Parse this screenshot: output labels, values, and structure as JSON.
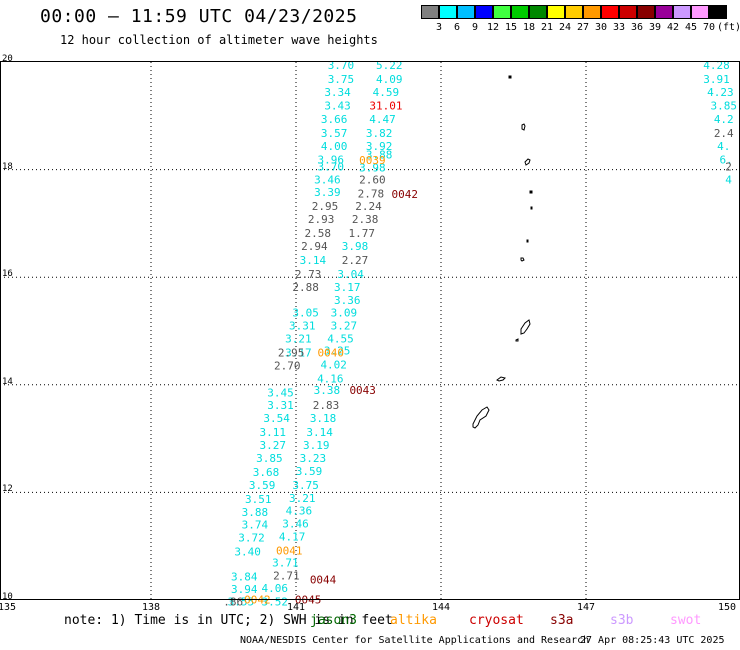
{
  "header": {
    "title": "00:00 – 11:59 UTC 04/23/2025",
    "subtitle": "12 hour collection of altimeter wave heights"
  },
  "legend": {
    "unit": "(ft)",
    "labels": [
      "3",
      "6",
      "9",
      "12",
      "15",
      "18",
      "21",
      "24",
      "27",
      "30",
      "33",
      "36",
      "39",
      "42",
      "45",
      "70"
    ],
    "colors": [
      "#808080",
      "#00ffff",
      "#00bfff",
      "#0000ff",
      "#40ff40",
      "#00cc00",
      "#008800",
      "#ffff00",
      "#ffcc00",
      "#ff9900",
      "#ff0000",
      "#cc0000",
      "#880000",
      "#990099",
      "#cc99ff",
      "#ff99ff",
      "#000000"
    ]
  },
  "axes": {
    "x_ticks": [
      "135",
      "138",
      "141",
      "144",
      "147",
      "150"
    ],
    "y_ticks": [
      "10",
      "12",
      "14",
      "16",
      "18",
      "20"
    ]
  },
  "tracks": [
    {
      "color": "#00dddd",
      "items": [
        {
          "v": "3.70",
          "lon": 141.93,
          "lat": 19.94
        },
        {
          "v": "3.75",
          "lon": 141.93,
          "lat": 19.68
        },
        {
          "v": "3.34",
          "lon": 141.86,
          "lat": 19.44
        },
        {
          "v": "3.43",
          "lon": 141.86,
          "lat": 19.19
        },
        {
          "v": "3.66",
          "lon": 141.79,
          "lat": 18.94
        },
        {
          "v": "3.57",
          "lon": 141.79,
          "lat": 18.68
        },
        {
          "v": "4.00",
          "lon": 141.79,
          "lat": 18.44
        },
        {
          "v": "3.96",
          "lon": 141.72,
          "lat": 18.19
        },
        {
          "v": "3.70",
          "lon": 141.72,
          "lat": 18.06
        },
        {
          "v": "3.46",
          "lon": 141.65,
          "lat": 17.82
        },
        {
          "v": "3.39",
          "lon": 141.65,
          "lat": 17.58
        },
        {
          "v": "3.14",
          "lon": 141.35,
          "lat": 16.32
        },
        {
          "v": "3.05",
          "lon": 141.2,
          "lat": 15.34
        },
        {
          "v": "3.31",
          "lon": 141.13,
          "lat": 15.1
        },
        {
          "v": "3.21",
          "lon": 141.05,
          "lat": 14.86
        },
        {
          "v": "3.17",
          "lon": 141.05,
          "lat": 14.6
        },
        {
          "v": "3.45",
          "lon": 140.68,
          "lat": 13.86
        },
        {
          "v": "3.31",
          "lon": 140.68,
          "lat": 13.62
        },
        {
          "v": "3.54",
          "lon": 140.6,
          "lat": 13.38
        },
        {
          "v": "3.11",
          "lon": 140.52,
          "lat": 13.12
        },
        {
          "v": "3.27",
          "lon": 140.52,
          "lat": 12.88
        },
        {
          "v": "3.85",
          "lon": 140.45,
          "lat": 12.64
        },
        {
          "v": "3.68",
          "lon": 140.38,
          "lat": 12.38
        },
        {
          "v": "3.59",
          "lon": 140.3,
          "lat": 12.14
        },
        {
          "v": "3.51",
          "lon": 140.22,
          "lat": 11.88
        },
        {
          "v": "3.88",
          "lon": 140.15,
          "lat": 11.64
        },
        {
          "v": "3.74",
          "lon": 140.15,
          "lat": 11.4
        },
        {
          "v": "3.72",
          "lon": 140.08,
          "lat": 11.16
        },
        {
          "v": "3.40",
          "lon": 140.0,
          "lat": 10.9
        },
        {
          "v": "3.84",
          "lon": 139.93,
          "lat": 10.44
        },
        {
          "v": "3.94",
          "lon": 139.93,
          "lat": 10.2
        },
        {
          "v": "3.55",
          "lon": 139.86,
          "lat": 9.97
        }
      ]
    },
    {
      "color": "#00dddd",
      "items": [
        {
          "v": "5.22",
          "lon": 142.93,
          "lat": 19.94
        },
        {
          "v": "4.09",
          "lon": 142.93,
          "lat": 19.68
        },
        {
          "v": "4.59",
          "lon": 142.86,
          "lat": 19.44
        },
        {
          "v": "4.47",
          "lon": 142.79,
          "lat": 18.94
        },
        {
          "v": "3.82",
          "lon": 142.72,
          "lat": 18.68
        },
        {
          "v": "3.92",
          "lon": 142.72,
          "lat": 18.44
        },
        {
          "v": "3.88",
          "lon": 142.72,
          "lat": 18.28
        },
        {
          "v": "3.98",
          "lon": 142.58,
          "lat": 18.04
        },
        {
          "v": "3.98",
          "lon": 142.22,
          "lat": 16.58
        },
        {
          "v": "3.04",
          "lon": 142.13,
          "lat": 16.06
        },
        {
          "v": "3.17",
          "lon": 142.06,
          "lat": 15.82
        },
        {
          "v": "3.36",
          "lon": 142.06,
          "lat": 15.58
        },
        {
          "v": "3.09",
          "lon": 141.99,
          "lat": 15.34
        },
        {
          "v": "3.27",
          "lon": 141.99,
          "lat": 15.1
        },
        {
          "v": "4.55",
          "lon": 141.92,
          "lat": 14.86
        },
        {
          "v": "3.25",
          "lon": 141.85,
          "lat": 14.64
        },
        {
          "v": "4.02",
          "lon": 141.78,
          "lat": 14.38
        },
        {
          "v": "4.16",
          "lon": 141.71,
          "lat": 14.12
        },
        {
          "v": "3.38",
          "lon": 141.64,
          "lat": 13.9
        },
        {
          "v": "3.18",
          "lon": 141.56,
          "lat": 13.38
        },
        {
          "v": "3.14",
          "lon": 141.49,
          "lat": 13.12
        },
        {
          "v": "3.19",
          "lon": 141.42,
          "lat": 12.88
        },
        {
          "v": "3.23",
          "lon": 141.35,
          "lat": 12.64
        },
        {
          "v": "3.59",
          "lon": 141.27,
          "lat": 12.4
        },
        {
          "v": "3.75",
          "lon": 141.2,
          "lat": 12.14
        },
        {
          "v": "3.21",
          "lon": 141.13,
          "lat": 11.9
        },
        {
          "v": "4.36",
          "lon": 141.06,
          "lat": 11.66
        },
        {
          "v": "3.46",
          "lon": 140.99,
          "lat": 11.42
        },
        {
          "v": "4.17",
          "lon": 140.92,
          "lat": 11.18
        },
        {
          "v": "3.71",
          "lon": 140.78,
          "lat": 10.7
        },
        {
          "v": "4.06",
          "lon": 140.56,
          "lat": 10.22
        },
        {
          "v": "3.52",
          "lon": 140.56,
          "lat": 9.97
        }
      ]
    },
    {
      "color": "#555555",
      "items": [
        {
          "v": "2.60",
          "lon": 142.58,
          "lat": 17.82
        },
        {
          "v": "2.78",
          "lon": 142.55,
          "lat": 17.56
        },
        {
          "v": "2.24",
          "lon": 142.5,
          "lat": 17.32
        },
        {
          "v": "2.38",
          "lon": 142.43,
          "lat": 17.08
        },
        {
          "v": "1.77",
          "lon": 142.36,
          "lat": 16.82
        },
        {
          "v": "2.27",
          "lon": 142.22,
          "lat": 16.32
        },
        {
          "v": "2.95",
          "lon": 141.6,
          "lat": 17.32
        },
        {
          "v": "2.93",
          "lon": 141.52,
          "lat": 17.08
        },
        {
          "v": "2.58",
          "lon": 141.45,
          "lat": 16.82
        },
        {
          "v": "2.94",
          "lon": 141.38,
          "lat": 16.58
        },
        {
          "v": "2.73",
          "lon": 141.25,
          "lat": 16.06
        },
        {
          "v": "2.88",
          "lon": 141.2,
          "lat": 15.82
        },
        {
          "v": "2.95",
          "lon": 140.9,
          "lat": 14.6
        },
        {
          "v": "2.70",
          "lon": 140.82,
          "lat": 14.36
        },
        {
          "v": "2.83",
          "lon": 141.62,
          "lat": 13.62
        },
        {
          "v": "2.71",
          "lon": 140.8,
          "lat": 10.46
        },
        {
          "v": ".86",
          "lon": 139.7,
          "lat": 9.97
        }
      ]
    },
    {
      "color": "#ff9900",
      "items": [
        {
          "v": "0039",
          "lon": 142.58,
          "lat": 18.18
        },
        {
          "v": "0040",
          "lon": 141.72,
          "lat": 14.6
        },
        {
          "v": "0041",
          "lon": 140.86,
          "lat": 10.92
        },
        {
          "v": "0042",
          "lon": 140.2,
          "lat": 10.01
        }
      ]
    },
    {
      "color": "#880000",
      "items": [
        {
          "v": "0042",
          "lon": 143.25,
          "lat": 17.55
        },
        {
          "v": "0043",
          "lon": 142.38,
          "lat": 13.9
        },
        {
          "v": "0044",
          "lon": 141.56,
          "lat": 10.38
        },
        {
          "v": "0045",
          "lon": 141.25,
          "lat": 10.01
        }
      ]
    },
    {
      "color": "#ee0000",
      "items": [
        {
          "v": "31.01",
          "lon": 142.86,
          "lat": 19.19
        }
      ]
    },
    {
      "color": "#00dddd",
      "items": [
        {
          "v": "4.28",
          "lon": 149.7,
          "lat": 19.94
        },
        {
          "v": "3.91",
          "lon": 149.7,
          "lat": 19.68
        },
        {
          "v": "4.23",
          "lon": 149.78,
          "lat": 19.44
        },
        {
          "v": "3.85",
          "lon": 149.85,
          "lat": 19.19
        },
        {
          "v": "4.2",
          "lon": 149.85,
          "lat": 18.94
        },
        {
          "v": "4.",
          "lon": 149.85,
          "lat": 18.44
        },
        {
          "v": "6.",
          "lon": 149.9,
          "lat": 18.19
        },
        {
          "v": "4",
          "lon": 149.95,
          "lat": 17.82
        }
      ]
    },
    {
      "color": "#555555",
      "items": [
        {
          "v": "2.4",
          "lon": 149.85,
          "lat": 18.68
        },
        {
          "v": "2",
          "lon": 149.95,
          "lat": 18.06
        }
      ]
    }
  ],
  "footer": {
    "note": "note: 1) Time is in UTC; 2) SWH is in feet",
    "satellites": [
      {
        "name": "jason3",
        "color": "#006600"
      },
      {
        "name": "altika",
        "color": "#ff9900"
      },
      {
        "name": "cryosat",
        "color": "#cc0000"
      },
      {
        "name": "s3a",
        "color": "#880000"
      },
      {
        "name": "s3b",
        "color": "#cc99ff"
      },
      {
        "name": "swot",
        "color": "#ff99ff"
      }
    ],
    "credit": "NOAA/NESDIS Center for Satellite Applications and Research",
    "timestamp": "27 Apr 08:25:43 UTC 2025"
  }
}
